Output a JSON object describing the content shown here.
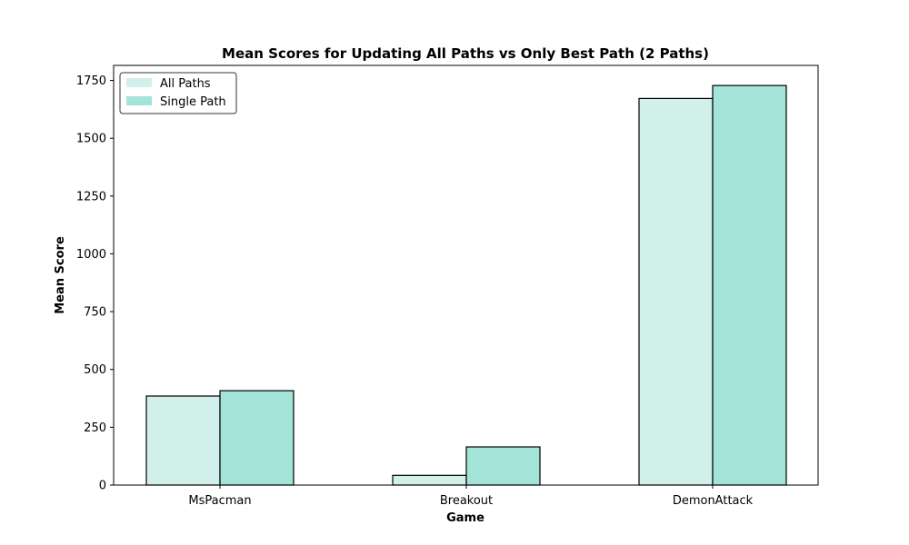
{
  "chart_data": {
    "type": "bar",
    "title": "Mean Scores for Updating All Paths vs Only Best Path (2 Paths)",
    "xlabel": "Game",
    "ylabel": "Mean Score",
    "categories": [
      "MsPacman",
      "Breakout",
      "DemonAttack"
    ],
    "series": [
      {
        "name": "All Paths",
        "values": [
          385,
          42,
          1672
        ],
        "color": "#d1f0ea"
      },
      {
        "name": "Single Path",
        "values": [
          408,
          165,
          1728
        ],
        "color": "#a3e3d8"
      }
    ],
    "ylim": [
      0,
      1815
    ],
    "yticks": [
      0,
      250,
      500,
      750,
      1000,
      1250,
      1500,
      1750
    ],
    "legend_position": "top-left",
    "grid": false,
    "bar_edge_color": "#000000"
  }
}
